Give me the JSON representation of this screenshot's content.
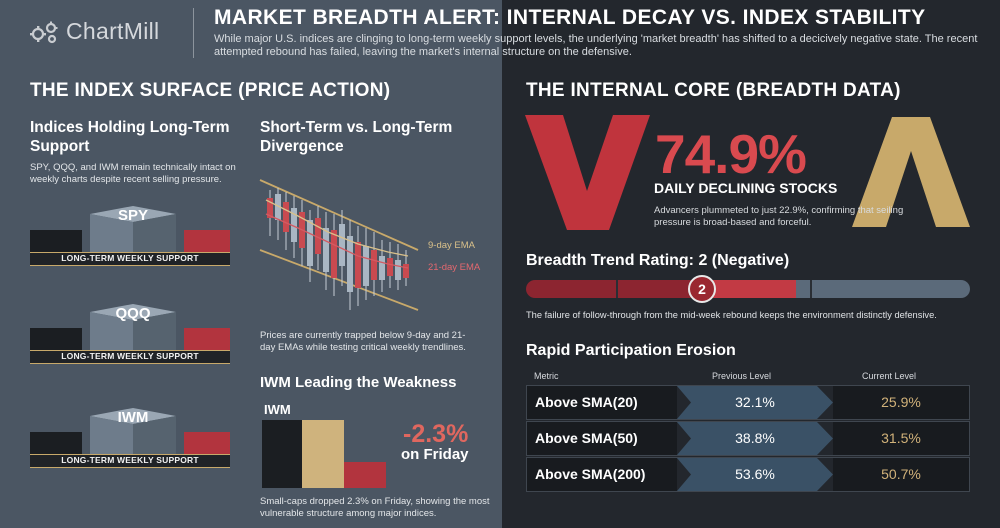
{
  "header": {
    "logo_text": "ChartMill",
    "title": "MARKET BREADTH ALERT: INTERNAL DECAY VS. INDEX STABILITY",
    "subtitle": "While major U.S. indices are clinging to long-term weekly support levels, the underlying 'market breadth' has shifted to a decicively negative state. The recent attempted rebound has failed, leaving the market's internal structure on the defensive."
  },
  "left": {
    "section_title": "THE INDEX SURFACE (PRICE ACTION)",
    "indices": {
      "heading": "Indices Holding Long-Term Support",
      "text": "SPY, QQQ, and IWM remain technically intact on weekly charts despite recent selling pressure.",
      "items": [
        {
          "symbol": "SPY",
          "band": "LONG-TERM WEEKLY SUPPORT"
        },
        {
          "symbol": "QQQ",
          "band": "LONG-TERM WEEKLY SUPPORT"
        },
        {
          "symbol": "IWM",
          "band": "LONG-TERM WEEKLY SUPPORT"
        }
      ]
    },
    "divergence": {
      "heading": "Short-Term vs. Long-Term Divergence",
      "ema9": "9-day EMA",
      "ema21": "21-day EMA",
      "text": "Prices are currently trapped below 9-day and 21-day EMAs while testing critical weekly trendlines."
    },
    "iwm": {
      "heading": "IWM Leading the Weakness",
      "label": "IWM",
      "pct": "-2.3%",
      "on": "on Friday",
      "text": "Small-caps dropped 2.3% on Friday, showing the most vulnerable structure among major indices."
    }
  },
  "right": {
    "section_title": "THE INTERNAL CORE (BREADTH DATA)",
    "declining": {
      "pct": "74.9%",
      "label": "DAILY DECLINING STOCKS",
      "text": "Advancers plummeted to just 22.9%, confirming that seiling pressure is broad-based and forceful."
    },
    "rating": {
      "title": "Breadth Trend Rating: 2 (Negative)",
      "value": "2",
      "note": "The failure of follow-through from the mid-week rebound keeps the environment distinctly defensive."
    },
    "erosion": {
      "title": "Rapid Participation Erosion",
      "columns": [
        "Metric",
        "Previous Level",
        "Current Level"
      ],
      "rows": [
        {
          "metric": "Above SMA(20)",
          "previous": "32.1%",
          "current": "25.9%"
        },
        {
          "metric": "Above SMA(50)",
          "previous": "38.8%",
          "current": "31.5%"
        },
        {
          "metric": "Above SMA(200)",
          "previous": "53.6%",
          "current": "50.7%"
        }
      ]
    }
  },
  "colors": {
    "red": "#d94a4f",
    "gold": "#c8a96a",
    "slate": "#4b5663",
    "dark": "#23272d"
  }
}
